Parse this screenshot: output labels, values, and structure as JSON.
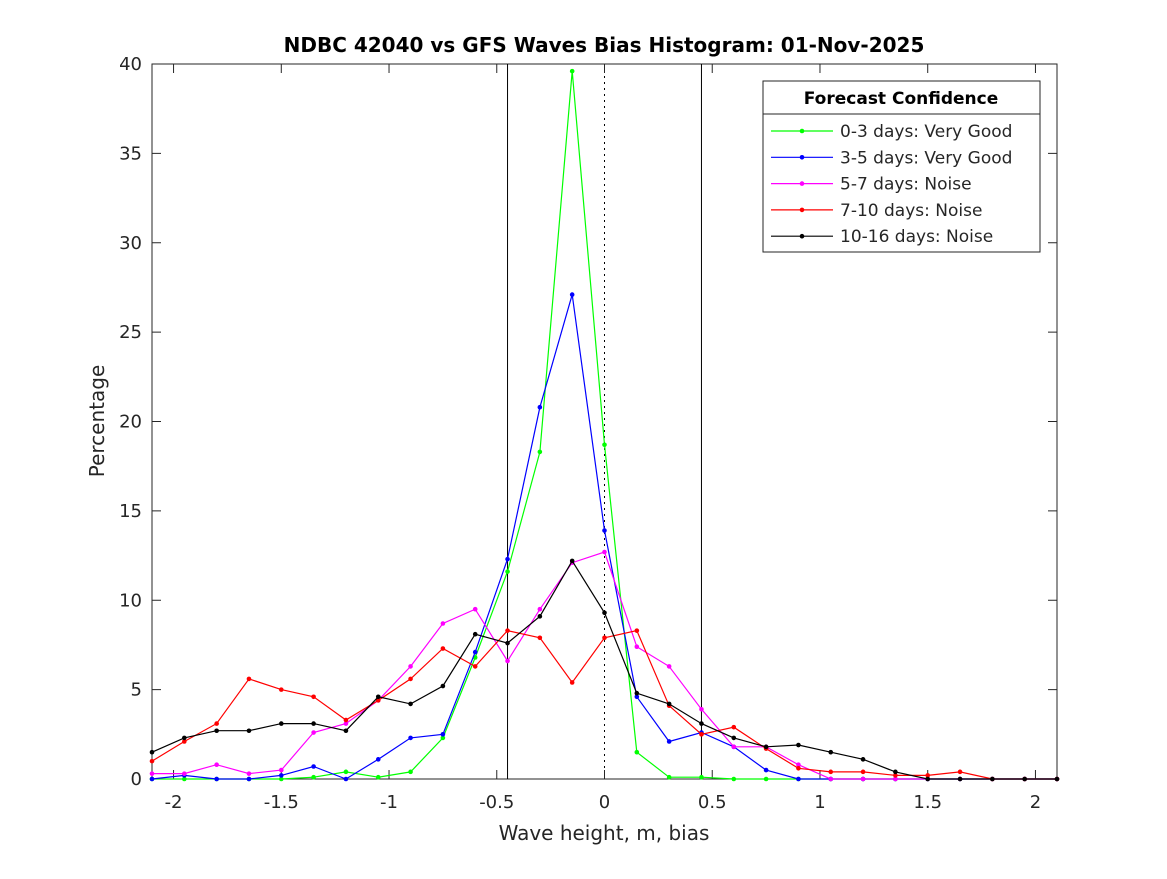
{
  "chart_data": {
    "type": "line",
    "title": "NDBC 42040 vs GFS Waves Bias Histogram: 01-Nov-2025",
    "xlabel": "Wave height, m, bias",
    "ylabel": "Percentage",
    "xlim": [
      -2.1,
      2.1
    ],
    "ylim": [
      0,
      40
    ],
    "xticks": [
      -2,
      -1.5,
      -1,
      -0.5,
      0,
      0.5,
      1,
      1.5,
      2
    ],
    "xtick_labels": [
      "-2",
      "-1.5",
      "-1",
      "-0.5",
      "0",
      "0.5",
      "1",
      "1.5",
      "2"
    ],
    "yticks": [
      0,
      5,
      10,
      15,
      20,
      25,
      30,
      35,
      40
    ],
    "ytick_labels": [
      "0",
      "5",
      "10",
      "15",
      "20",
      "25",
      "30",
      "35",
      "40"
    ],
    "grid": false,
    "reference_lines": [
      {
        "x": -0.45,
        "style": "solid"
      },
      {
        "x": 0,
        "style": "dotted"
      },
      {
        "x": 0.45,
        "style": "solid"
      }
    ],
    "legend": {
      "title": "Forecast Confidence",
      "placement": "top-right"
    },
    "x": [
      -2.1,
      -1.95,
      -1.8,
      -1.65,
      -1.5,
      -1.35,
      -1.2,
      -1.05,
      -0.9,
      -0.75,
      -0.6,
      -0.45,
      -0.3,
      -0.15,
      0,
      0.15,
      0.3,
      0.45,
      0.6,
      0.75,
      0.9,
      1.05,
      1.2,
      1.35,
      1.5,
      1.65,
      1.8,
      1.95,
      2.1
    ],
    "series": [
      {
        "name": "0-3 days: Very Good",
        "color": "#00ff00",
        "values": [
          0,
          0,
          0,
          0,
          0,
          0.1,
          0.4,
          0.1,
          0.4,
          2.3,
          6.8,
          11.6,
          18.3,
          39.6,
          18.7,
          1.5,
          0.1,
          0.1,
          0,
          0,
          0,
          0,
          0,
          0,
          0,
          0,
          0,
          0,
          0
        ]
      },
      {
        "name": "3-5 days: Very Good",
        "color": "#0000ff",
        "values": [
          0,
          0.2,
          0,
          0,
          0.2,
          0.7,
          0,
          1.1,
          2.3,
          2.5,
          7.1,
          12.3,
          20.8,
          27.1,
          13.9,
          4.6,
          2.1,
          2.6,
          1.8,
          0.5,
          0,
          0,
          0,
          0,
          0,
          0,
          0,
          0,
          0
        ]
      },
      {
        "name": "5-7 days: Noise",
        "color": "#ff00ff",
        "values": [
          0.3,
          0.3,
          0.8,
          0.3,
          0.5,
          2.6,
          3.1,
          4.4,
          6.3,
          8.7,
          9.5,
          6.6,
          9.5,
          12.1,
          12.7,
          7.4,
          6.3,
          3.9,
          1.8,
          1.8,
          0.8,
          0,
          0,
          0,
          0,
          0,
          0,
          0,
          0
        ]
      },
      {
        "name": "7-10 days: Noise",
        "color": "#ff0000",
        "values": [
          1.0,
          2.1,
          3.1,
          5.6,
          5.0,
          4.6,
          3.3,
          4.4,
          5.6,
          7.3,
          6.3,
          8.3,
          7.9,
          5.4,
          7.9,
          8.3,
          4.1,
          2.5,
          2.9,
          1.7,
          0.6,
          0.4,
          0.4,
          0.2,
          0.2,
          0.4,
          0,
          0,
          0
        ]
      },
      {
        "name": "10-16 days: Noise",
        "color": "#000000",
        "values": [
          1.5,
          2.3,
          2.7,
          2.7,
          3.1,
          3.1,
          2.7,
          4.6,
          4.2,
          5.2,
          8.1,
          7.6,
          9.1,
          12.2,
          9.3,
          4.8,
          4.2,
          3.1,
          2.3,
          1.8,
          1.9,
          1.5,
          1.1,
          0.4,
          0,
          0,
          0,
          0,
          0
        ]
      }
    ]
  }
}
